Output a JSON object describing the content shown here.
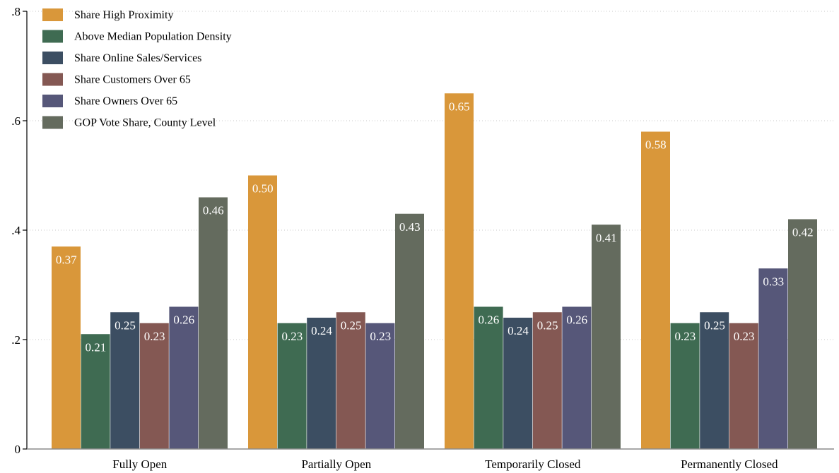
{
  "chart_data": {
    "type": "bar",
    "categories": [
      "Fully Open",
      "Partially Open",
      "Temporarily Closed",
      "Permanently Closed"
    ],
    "series": [
      {
        "name": "Share High Proximity",
        "color": "#d9973a",
        "values": [
          0.37,
          0.5,
          0.65,
          0.58
        ],
        "labels": [
          "0.37",
          "0.50",
          "0.65",
          "0.58"
        ]
      },
      {
        "name": "Above Median Population Density",
        "color": "#3f6b52",
        "values": [
          0.21,
          0.23,
          0.26,
          0.23
        ],
        "labels": [
          "0.21",
          "0.23",
          "0.26",
          "0.23"
        ]
      },
      {
        "name": "Share Online Sales/Services",
        "color": "#3c4e62",
        "values": [
          0.25,
          0.24,
          0.24,
          0.25
        ],
        "labels": [
          "0.25",
          "0.24",
          "0.24",
          "0.25"
        ]
      },
      {
        "name": "Share Customers Over 65",
        "color": "#845853",
        "values": [
          0.23,
          0.25,
          0.25,
          0.23
        ],
        "labels": [
          "0.23",
          "0.25",
          "0.25",
          "0.23"
        ]
      },
      {
        "name": "Share Owners Over 65",
        "color": "#565779",
        "values": [
          0.26,
          0.23,
          0.26,
          0.33
        ],
        "labels": [
          "0.26",
          "0.23",
          "0.26",
          "0.33"
        ]
      },
      {
        "name": "GOP Vote Share, County Level",
        "color": "#646b5e",
        "values": [
          0.46,
          0.43,
          0.41,
          0.42
        ],
        "labels": [
          "0.46",
          "0.43",
          "0.41",
          "0.42"
        ]
      }
    ],
    "ylim": [
      0,
      0.8
    ],
    "yticks": [
      0,
      0.2,
      0.4,
      0.6,
      0.8
    ],
    "ytick_labels": [
      "0",
      ".2",
      ".4",
      ".6",
      ".8"
    ],
    "grid": true,
    "legend_position": "top-left",
    "title": "",
    "xlabel": "",
    "ylabel": ""
  }
}
